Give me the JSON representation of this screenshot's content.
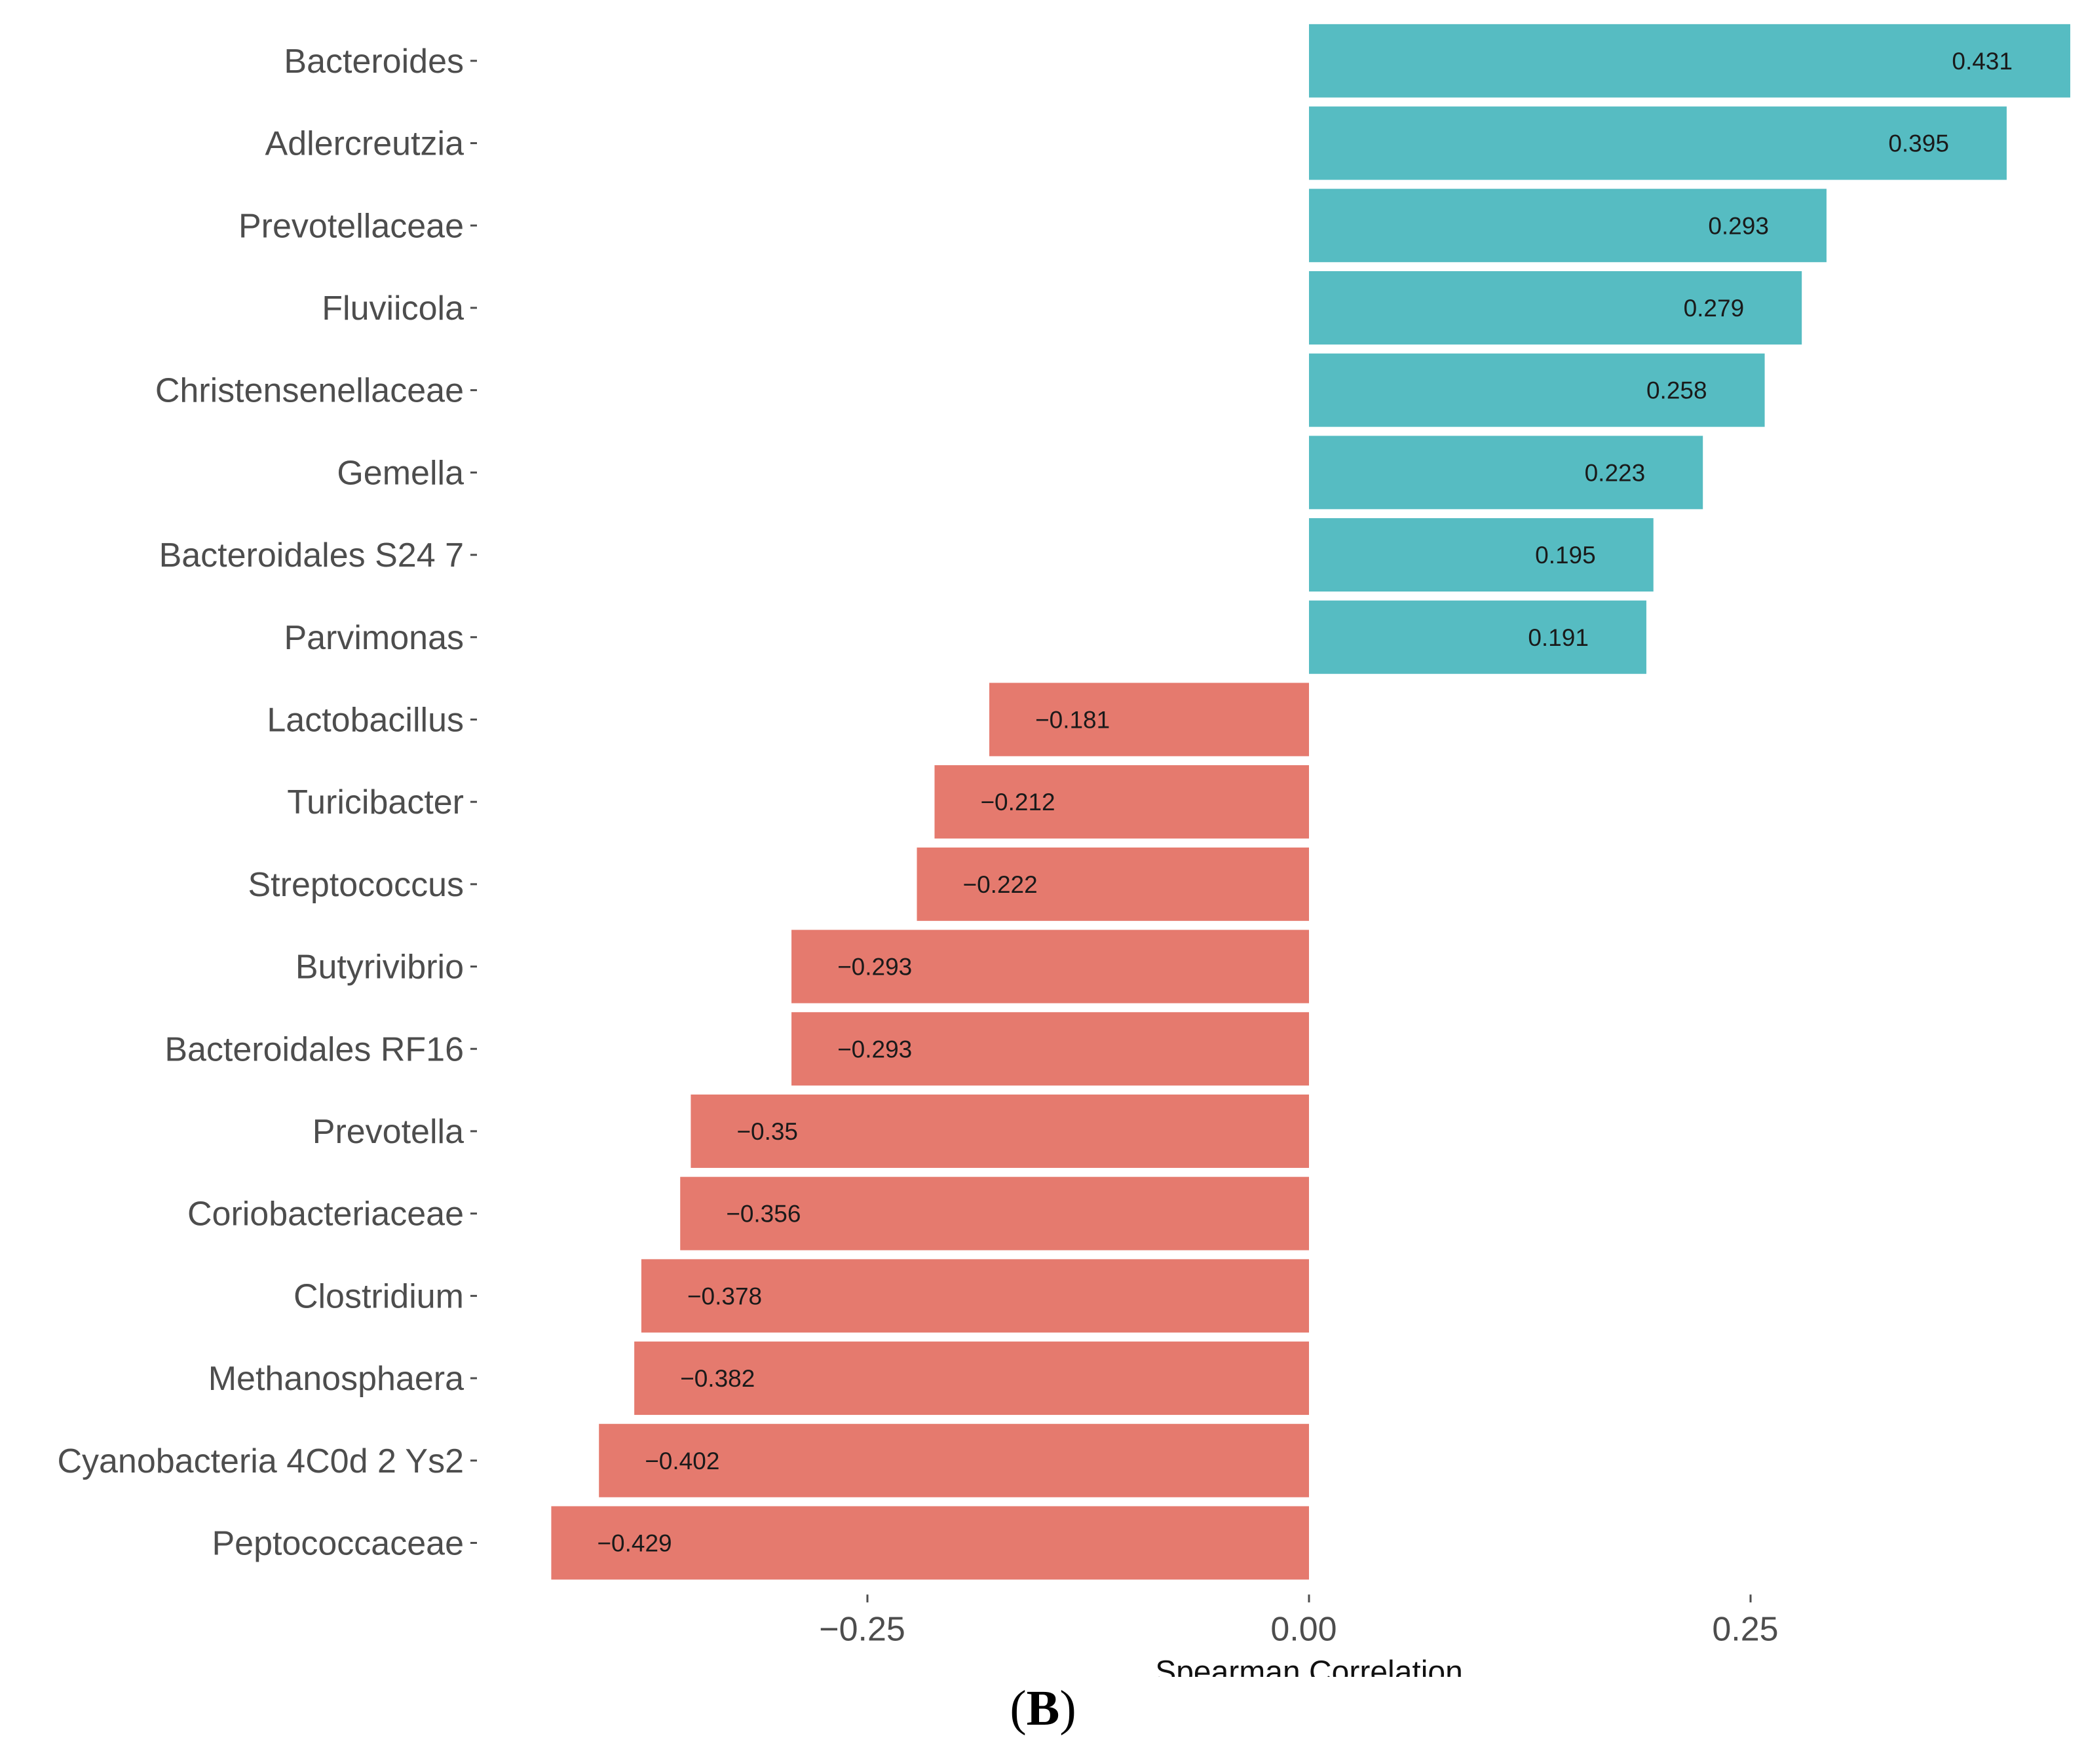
{
  "chart_data": {
    "type": "bar",
    "orientation": "horizontal",
    "categories": [
      "Bacteroides",
      "Adlercreutzia",
      "Prevotellaceae",
      "Fluviicola",
      "Christensenellaceae",
      "Gemella",
      "Bacteroidales S24 7",
      "Parvimonas",
      "Lactobacillus",
      "Turicibacter",
      "Streptococcus",
      "Butyrivibrio",
      "Bacteroidales RF16",
      "Prevotella",
      "Coriobacteriaceae",
      "Clostridium",
      "Methanosphaera",
      "Cyanobacteria 4C0d 2 Ys2",
      "Peptococcaceae"
    ],
    "values": [
      0.431,
      0.395,
      0.293,
      0.279,
      0.258,
      0.223,
      0.195,
      0.191,
      -0.181,
      -0.212,
      -0.222,
      -0.293,
      -0.293,
      -0.35,
      -0.356,
      -0.378,
      -0.382,
      -0.402,
      -0.429
    ],
    "value_labels": [
      "0.431",
      "0.395",
      "0.293",
      "0.279",
      "0.258",
      "0.223",
      "0.195",
      "0.191",
      "−0.181",
      "−0.212",
      "−0.222",
      "−0.293",
      "−0.293",
      "−0.35",
      "−0.356",
      "−0.378",
      "−0.382",
      "−0.402",
      "−0.429"
    ],
    "xlabel": "Spearman Correlation",
    "ylabel": "",
    "xlim": [
      -0.43,
      0.431
    ],
    "x_ticks": [
      -0.25,
      0.0,
      0.25
    ],
    "x_tick_labels": [
      "−0.25",
      "0.00",
      "0.25"
    ],
    "grid": false,
    "legend": "none",
    "colors": {
      "positive": "#56bcc2",
      "negative": "#e57a6e"
    }
  },
  "figure": {
    "panel_label_open": "(",
    "panel_label_letter": "B",
    "panel_label_close": ")"
  }
}
